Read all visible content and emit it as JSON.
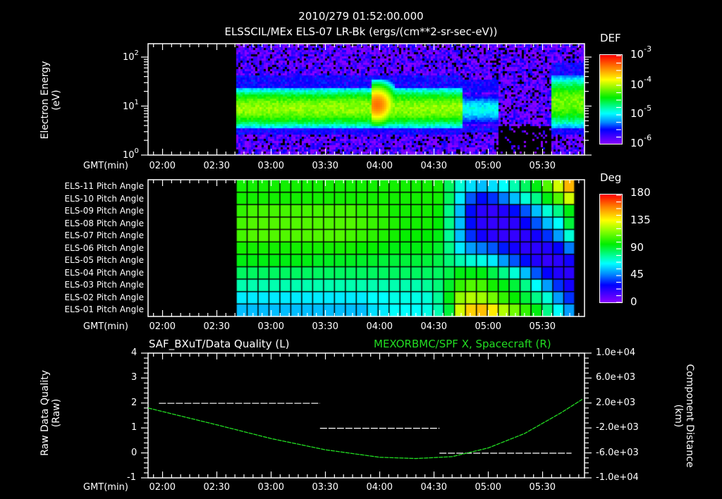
{
  "header": {
    "timestamp": "2010/279 01:52:00.000",
    "title": "ELSSCIL/MEx ELS-07 LR-Bk  (ergs/(cm**2-sr-sec-eV))"
  },
  "time_axis": {
    "label": "GMT(min)",
    "ticks": [
      "02:00",
      "02:30",
      "03:00",
      "03:30",
      "04:00",
      "04:30",
      "05:00",
      "05:30"
    ]
  },
  "panel1": {
    "ylabel_line1": "Electron Energy",
    "ylabel_line2": "(eV)",
    "yticks": [
      {
        "base": "10",
        "exp": "2"
      },
      {
        "base": "10",
        "exp": "1"
      },
      {
        "base": "10",
        "exp": "0"
      }
    ],
    "colorbar": {
      "title": "DEF",
      "ticks": [
        {
          "base": "10",
          "exp": "-3"
        },
        {
          "base": "10",
          "exp": "-4"
        },
        {
          "base": "10",
          "exp": "-5"
        },
        {
          "base": "10",
          "exp": "-6"
        }
      ]
    }
  },
  "panel2": {
    "row_labels": [
      "ELS-11 Pitch Angle",
      "ELS-10 Pitch Angle",
      "ELS-09 Pitch Angle",
      "ELS-08 Pitch Angle",
      "ELS-07 Pitch Angle",
      "ELS-06 Pitch Angle",
      "ELS-05 Pitch Angle",
      "ELS-04 Pitch Angle",
      "ELS-03 Pitch Angle",
      "ELS-02 Pitch Angle",
      "ELS-01 Pitch Angle"
    ],
    "colorbar": {
      "title": "Deg",
      "ticks": [
        "180",
        "135",
        "90",
        "45",
        "0"
      ]
    }
  },
  "panel3": {
    "left_title": "SAF_BXuT/Data Quality (L)",
    "right_title": "MEXORBMC/SPF X, Spacecraft (R)",
    "ylabel_left_line1": "Raw Data Quality",
    "ylabel_left_line2": "(Raw)",
    "ylabel_right_line1": "Component Distance",
    "ylabel_right_line2": "(km)",
    "yticks_left": [
      "4",
      "3",
      "2",
      "1",
      "0",
      "-1"
    ],
    "yticks_right": [
      "1.0e+04",
      "6.0e+03",
      "2.0e+03",
      "-2.0e+03",
      "-6.0e+03",
      "-1.0e+04"
    ]
  },
  "colors": {
    "background": "#000000",
    "axes": "#ffffff",
    "spf_line": "#22dd22",
    "right_title": "#22dd22"
  },
  "chart_data": [
    {
      "type": "heatmap",
      "title": "ELSSCIL/MEx ELS-07 LR-Bk (ergs/(cm**2-sr-sec-eV))",
      "xlabel": "GMT(min)",
      "ylabel": "Electron Energy (eV)",
      "x_range": [
        "01:52",
        "05:52"
      ],
      "ylim": [
        1,
        200
      ],
      "yscale": "log",
      "colorbar": {
        "label": "DEF",
        "range": [
          1e-06,
          0.001
        ],
        "scale": "log"
      },
      "features": [
        {
          "desc": "no data",
          "time": [
            "01:52",
            "02:41"
          ]
        },
        {
          "desc": "main band ~4-25 eV, DEF ~1e-4",
          "time": [
            "02:41",
            "04:50"
          ]
        },
        {
          "desc": "intensification peak ~12 eV, DEF ~5e-4",
          "time": "03:58"
        },
        {
          "desc": "weak/absent band",
          "time": [
            "04:52",
            "05:38"
          ]
        },
        {
          "desc": "band returns ~4-40 eV",
          "time": [
            "05:38",
            "05:52"
          ]
        }
      ]
    },
    {
      "type": "heatmap",
      "title": "ELS Pitch Angle",
      "xlabel": "GMT(min)",
      "rows": [
        "ELS-11",
        "ELS-10",
        "ELS-09",
        "ELS-08",
        "ELS-07",
        "ELS-06",
        "ELS-05",
        "ELS-04",
        "ELS-03",
        "ELS-02",
        "ELS-01"
      ],
      "colorbar": {
        "label": "Deg",
        "range": [
          0,
          180
        ]
      },
      "x_range": [
        "02:41",
        "05:48"
      ],
      "n_columns": 31,
      "values": [
        [
          100,
          100,
          100,
          100,
          100,
          100,
          100,
          100,
          100,
          100,
          100,
          100,
          100,
          100,
          100,
          100,
          100,
          100,
          100,
          85,
          70,
          60,
          55,
          60,
          65,
          75,
          85,
          95,
          110,
          130,
          150
        ],
        [
          100,
          100,
          100,
          100,
          100,
          100,
          100,
          100,
          100,
          100,
          100,
          100,
          100,
          100,
          100,
          100,
          100,
          100,
          100,
          85,
          62,
          40,
          30,
          35,
          45,
          55,
          70,
          80,
          95,
          110,
          130
        ],
        [
          105,
          108,
          108,
          108,
          108,
          108,
          108,
          108,
          108,
          108,
          108,
          105,
          105,
          103,
          100,
          100,
          100,
          100,
          98,
          80,
          55,
          30,
          20,
          18,
          22,
          30,
          40,
          55,
          70,
          80,
          95
        ],
        [
          108,
          110,
          110,
          110,
          110,
          110,
          110,
          110,
          110,
          110,
          110,
          108,
          106,
          104,
          102,
          100,
          100,
          100,
          97,
          80,
          55,
          30,
          20,
          18,
          18,
          20,
          28,
          40,
          55,
          65,
          90
        ],
        [
          108,
          110,
          110,
          110,
          110,
          110,
          110,
          110,
          110,
          110,
          108,
          106,
          104,
          102,
          100,
          98,
          98,
          97,
          95,
          78,
          55,
          35,
          25,
          20,
          18,
          18,
          20,
          25,
          35,
          50,
          70
        ],
        [
          100,
          100,
          100,
          100,
          100,
          100,
          100,
          100,
          100,
          100,
          100,
          98,
          98,
          96,
          95,
          95,
          95,
          95,
          92,
          80,
          62,
          50,
          45,
          40,
          32,
          25,
          20,
          20,
          22,
          28,
          45
        ],
        [
          95,
          95,
          95,
          95,
          95,
          95,
          95,
          93,
          93,
          93,
          93,
          92,
          92,
          90,
          90,
          90,
          90,
          90,
          88,
          82,
          75,
          70,
          68,
          62,
          50,
          40,
          30,
          22,
          18,
          20,
          25
        ],
        [
          85,
          85,
          85,
          85,
          85,
          85,
          85,
          85,
          85,
          85,
          85,
          85,
          85,
          85,
          85,
          85,
          85,
          85,
          85,
          88,
          95,
          95,
          95,
          88,
          80,
          70,
          55,
          40,
          28,
          22,
          20
        ],
        [
          75,
          75,
          75,
          75,
          75,
          75,
          75,
          75,
          75,
          75,
          75,
          75,
          75,
          75,
          75,
          75,
          75,
          78,
          82,
          92,
          105,
          110,
          108,
          100,
          95,
          90,
          80,
          65,
          50,
          35,
          25
        ],
        [
          62,
          62,
          62,
          62,
          62,
          62,
          62,
          62,
          62,
          62,
          62,
          62,
          65,
          65,
          68,
          68,
          68,
          70,
          78,
          95,
          120,
          125,
          122,
          115,
          105,
          98,
          90,
          80,
          70,
          50,
          35
        ],
        [
          55,
          55,
          55,
          55,
          55,
          55,
          55,
          55,
          55,
          55,
          55,
          55,
          60,
          62,
          65,
          65,
          65,
          68,
          75,
          90,
          130,
          145,
          148,
          140,
          125,
          115,
          105,
          95,
          80,
          65,
          50
        ]
      ]
    },
    {
      "type": "line",
      "title": "SAF_BXuT/Data Quality (L) & MEXORBMC/SPF X, Spacecraft (R)",
      "xlabel": "GMT(min)",
      "ylabel_left": "Raw Data Quality (Raw)",
      "ylabel_right": "Component Distance (km)",
      "ylim_left": [
        -1,
        4
      ],
      "ylim_right": [
        -10000,
        10000
      ],
      "series": [
        {
          "name": "Data Quality",
          "axis": "left",
          "color": "#ffffff",
          "style": "dashed",
          "segments": [
            {
              "x": [
                "01:58",
                "03:27"
              ],
              "y": 2
            },
            {
              "x": [
                "03:27",
                "04:33"
              ],
              "y": 1
            },
            {
              "x": [
                "04:33",
                "05:46"
              ],
              "y": 0
            }
          ]
        },
        {
          "name": "SPF X",
          "axis": "right",
          "color": "#22dd22",
          "x": [
            "01:52",
            "02:30",
            "03:00",
            "03:30",
            "04:00",
            "04:20",
            "04:40",
            "05:00",
            "05:20",
            "05:40",
            "05:52"
          ],
          "y": [
            1200,
            -1500,
            -3700,
            -5500,
            -6700,
            -6900,
            -6600,
            -5200,
            -2900,
            400,
            2600
          ]
        }
      ]
    }
  ]
}
